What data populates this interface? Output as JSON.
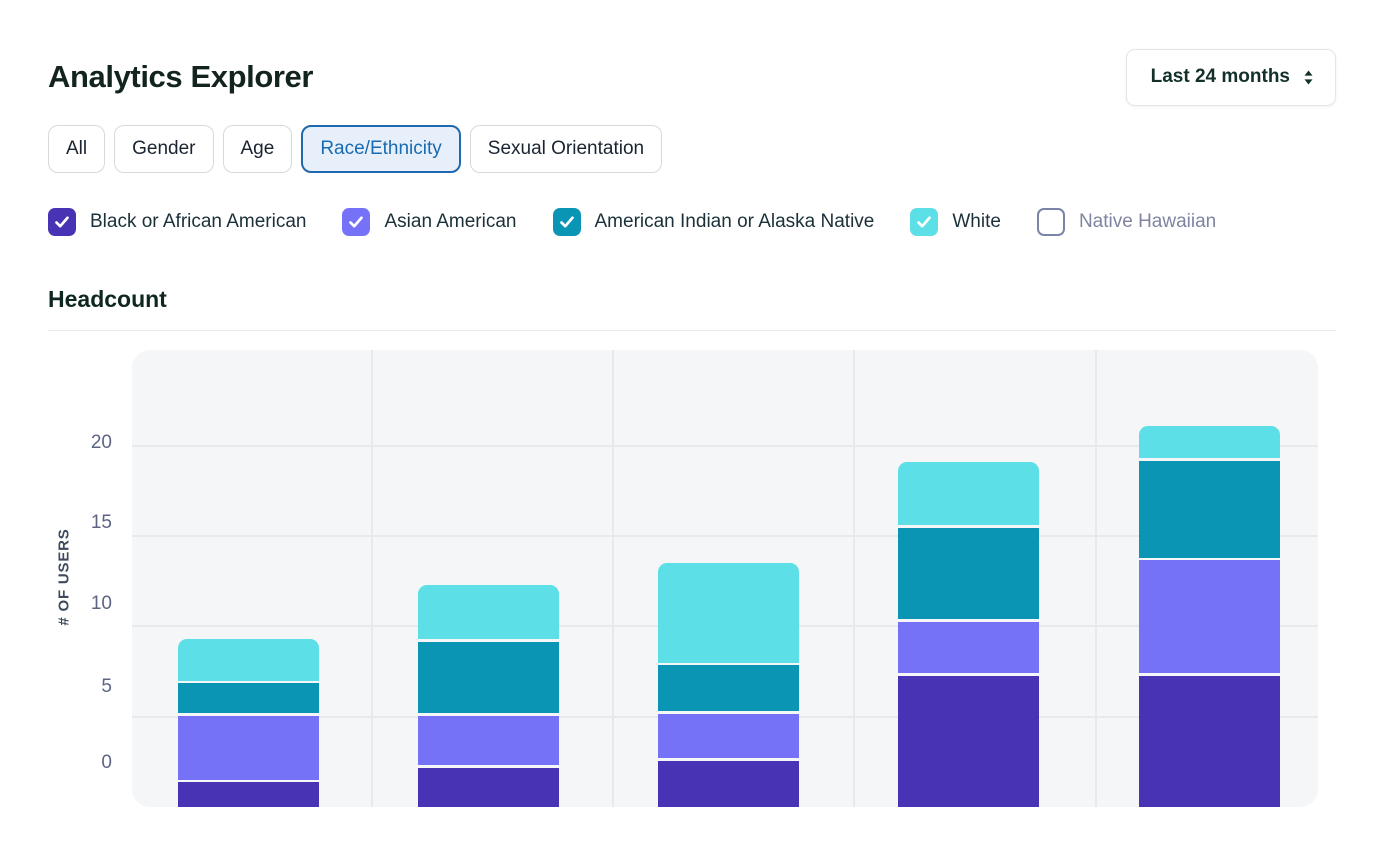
{
  "header": {
    "title": "Analytics Explorer",
    "time_range": "Last 24 months"
  },
  "tabs": [
    {
      "label": "All",
      "selected": false
    },
    {
      "label": "Gender",
      "selected": false
    },
    {
      "label": "Age",
      "selected": false
    },
    {
      "label": "Race/Ethnicity",
      "selected": true
    },
    {
      "label": "Sexual Orientation",
      "selected": false
    }
  ],
  "filters": [
    {
      "label": "Black or African American",
      "checked": true,
      "color": "#4733b4"
    },
    {
      "label": "Asian American",
      "checked": true,
      "color": "#7572f8"
    },
    {
      "label": "American Indian or Alaska Native",
      "checked": true,
      "color": "#0b95b4"
    },
    {
      "label": "White",
      "checked": true,
      "color": "#5cdfe6"
    },
    {
      "label": "Native Hawaiian",
      "checked": false,
      "color": null
    }
  ],
  "section_title": "Headcount",
  "accent_colors": {
    "selected_tab_border": "#2069b0",
    "selected_tab_bg": "#e7f0fa",
    "selected_tab_text": "#186bb2",
    "unchecked_border": "#7b84a8",
    "grid": "#e7eaec",
    "plot_bg": "#f4f6f8"
  },
  "chart_data": {
    "type": "bar",
    "stacked": true,
    "title": "Headcount",
    "xlabel": "",
    "ylabel": "# OF USERS",
    "yticks": [
      0,
      5,
      10,
      15,
      20
    ],
    "ylim": [
      0,
      25.3
    ],
    "grid": true,
    "legend_position": "top (checkbox row)",
    "num_bars": 5,
    "series": [
      {
        "name": "Black or African American",
        "color": "#4733b4",
        "values": [
          1.5,
          2.3,
          2.7,
          7.4,
          7.4
        ]
      },
      {
        "name": "Asian American",
        "color": "#7572f8",
        "values": [
          3.7,
          2.9,
          2.6,
          3.0,
          6.4
        ]
      },
      {
        "name": "American Indian or Alaska Native",
        "color": "#0b95b4",
        "values": [
          1.8,
          4.1,
          2.7,
          5.2,
          5.5
        ]
      },
      {
        "name": "White",
        "color": "#5cdfe6",
        "values": [
          2.3,
          3.0,
          5.5,
          3.5,
          1.8
        ]
      }
    ],
    "stack_totals": [
      9.3,
      12.3,
      13.5,
      19.1,
      21.1
    ]
  }
}
